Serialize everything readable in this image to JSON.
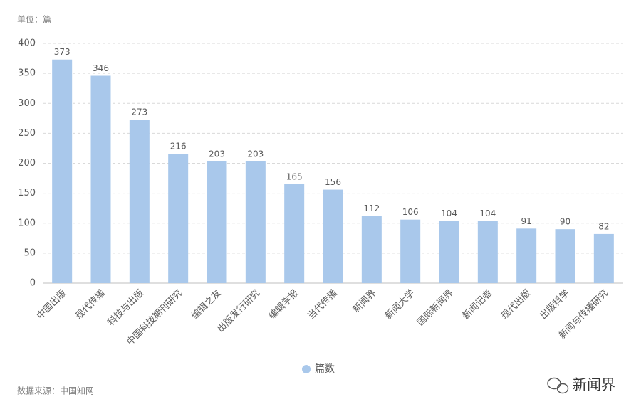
{
  "chart_data": {
    "type": "bar",
    "unit_label": "单位：篇",
    "source": "数据来源：中国知网",
    "watermark": "新闻界",
    "categories": [
      "中国出版",
      "现代传播",
      "科技与出版",
      "中国科技期刊研究",
      "编辑之友",
      "出版发行研究",
      "编辑学报",
      "当代传播",
      "新闻界",
      "新闻大学",
      "国际新闻界",
      "新闻记者",
      "现代出版",
      "出版科学",
      "新闻与传播研究"
    ],
    "series": [
      {
        "name": "篇数",
        "color": "#a9c8eb",
        "values": [
          373,
          346,
          273,
          216,
          203,
          203,
          165,
          156,
          112,
          106,
          104,
          104,
          91,
          90,
          82
        ]
      }
    ],
    "ylim": [
      0,
      400
    ],
    "yticks": [
      0,
      50,
      100,
      150,
      200,
      250,
      300,
      350,
      400
    ],
    "grid": true
  }
}
